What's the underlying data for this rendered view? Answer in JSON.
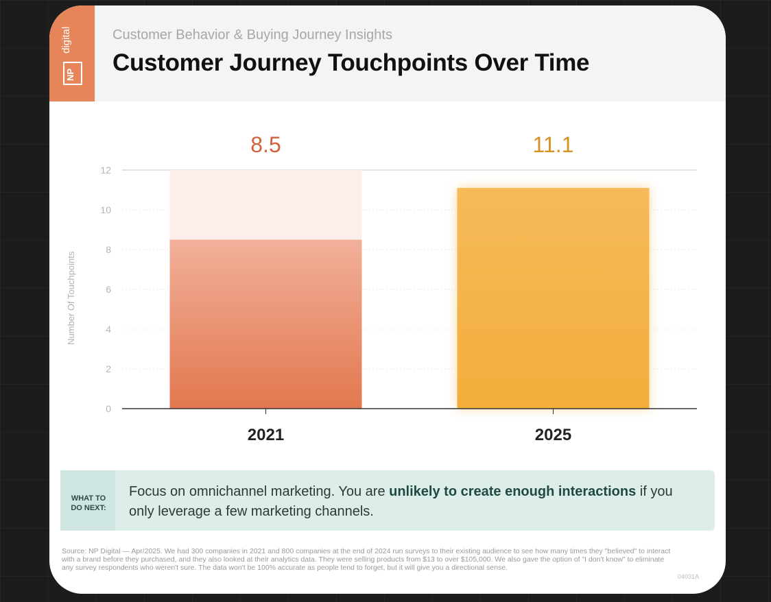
{
  "header": {
    "brand_word": "digital",
    "brand_letters": "NP",
    "subtitle": "Customer Behavior & Buying Journey Insights",
    "title": "Customer Journey Touchpoints Over Time"
  },
  "chart_data": {
    "type": "bar",
    "categories": [
      "2021",
      "2025"
    ],
    "values": [
      8.5,
      11.1
    ],
    "data_labels": [
      "8.5",
      "11.1"
    ],
    "ylabel": "Number Of Touchpoints",
    "ylim": [
      0,
      12
    ],
    "yticks": [
      0,
      2,
      4,
      6,
      8,
      10,
      12
    ],
    "grid": true,
    "colors": [
      "#e2784f",
      "#f3ae3b"
    ]
  },
  "tip": {
    "tag": "WHAT TO DO NEXT:",
    "text_before": "Focus on omnichannel marketing. You are ",
    "text_bold": "unlikely to create enough interactions",
    "text_after": " if you only leverage a few marketing channels."
  },
  "footer": {
    "source": "Source: NP Digital — Apr/2025. We had 300 companies in 2021 and 800 companies at the end of 2024 run surveys to their existing audience to see how many times they \"believed\" to interact with a brand before they purchased, and they also looked at their analytics data. They were selling products from $13 to over $105,000. We also gave the option of \"I don't know\" to eliminate any survey respondents who weren't sure. The data won't be 100% accurate as people tend to forget, but it will give you a directional sense.",
    "code": "04031A"
  }
}
